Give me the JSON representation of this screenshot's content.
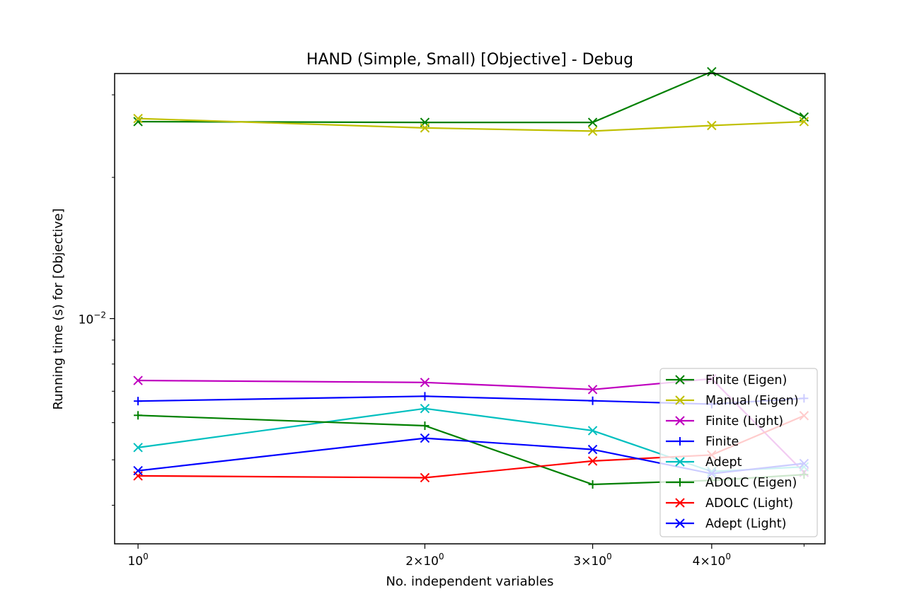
{
  "chart_data": {
    "type": "line",
    "title": "HAND (Simple, Small) [Objective] - Debug",
    "xlabel": "No. independent variables",
    "ylabel": "Running time (s) for [Objective]",
    "x_scale": "log",
    "y_scale": "log",
    "xlim": [
      0.945,
      5.26
    ],
    "ylim": [
      0.00331,
      0.0333
    ],
    "grid": false,
    "legend_position": "lower-right",
    "x": [
      1,
      2,
      3,
      4,
      5
    ],
    "x_ticks": [
      {
        "value": 1,
        "mantissa": "",
        "exponent": "0"
      },
      {
        "value": 2,
        "mantissa": "2",
        "exponent": "0"
      },
      {
        "value": 3,
        "mantissa": "3",
        "exponent": "0"
      },
      {
        "value": 4,
        "mantissa": "4",
        "exponent": "0"
      }
    ],
    "y_ticks": [
      {
        "value": 0.01,
        "base": "10",
        "exponent": "−2"
      }
    ],
    "series": [
      {
        "name": "Finite (Eigen)",
        "color": "#008000",
        "marker": "x",
        "values": [
          0.0263,
          0.0262,
          0.0262,
          0.0336,
          0.0269
        ]
      },
      {
        "name": "Manual (Eigen)",
        "color": "#bfbf00",
        "marker": "x",
        "values": [
          0.0267,
          0.0255,
          0.0251,
          0.0258,
          0.0263
        ]
      },
      {
        "name": "Finite (Light)",
        "color": "#bf00bf",
        "marker": "x",
        "values": [
          0.00738,
          0.00731,
          0.00706,
          0.00744,
          0.0047
        ]
      },
      {
        "name": "Finite",
        "color": "#0000ff",
        "marker": "+",
        "values": [
          0.00667,
          0.00683,
          0.00668,
          0.00657,
          0.00676
        ]
      },
      {
        "name": "Adept",
        "color": "#00bfbf",
        "marker": "x",
        "values": [
          0.00531,
          0.00643,
          0.00577,
          0.00472,
          0.00483
        ]
      },
      {
        "name": "ADOLC (Eigen)",
        "color": "#008000",
        "marker": "+",
        "values": [
          0.00622,
          0.00591,
          0.00443,
          0.00452,
          0.00465
        ]
      },
      {
        "name": "ADOLC (Light)",
        "color": "#ff0000",
        "marker": "x",
        "values": [
          0.00462,
          0.00458,
          0.00497,
          0.00512,
          0.00621
        ]
      },
      {
        "name": "Adept (Light)",
        "color": "#0000ff",
        "marker": "x",
        "values": [
          0.00474,
          0.00556,
          0.00526,
          0.00467,
          0.00491
        ]
      }
    ]
  }
}
